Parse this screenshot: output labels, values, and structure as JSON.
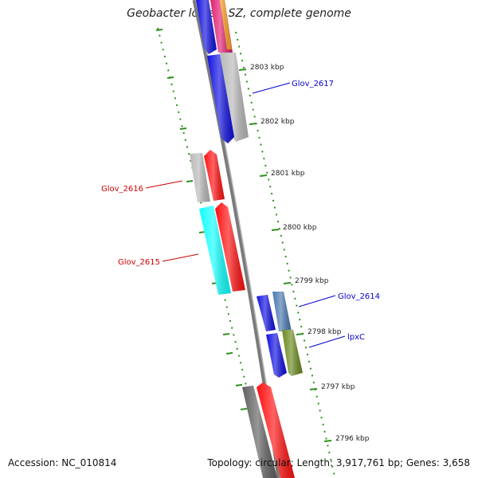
{
  "title": "Geobacter lovleyi SZ, complete genome",
  "footer": {
    "accession_label": "Accession:",
    "accession": "NC_010814",
    "topology_label": "Topology:",
    "topology": "circular",
    "length_label": "Length:",
    "length": "3,917,761 bp",
    "genes_label": "Genes:",
    "genes": "3,658"
  },
  "colors": {
    "backbone": "#7a7a7a",
    "tick": "#2f8f1f",
    "forward_label": "#0000cc",
    "reverse_label": "#cc0000"
  },
  "ticks": [
    {
      "label": "2803 kbp"
    },
    {
      "label": "2802 kbp"
    },
    {
      "label": "2801 kbp"
    },
    {
      "label": "2800 kbp"
    },
    {
      "label": "2799 kbp"
    },
    {
      "label": "2798 kbp"
    },
    {
      "label": "2797 kbp"
    },
    {
      "label": "2796 kbp"
    }
  ],
  "gene_labels": [
    {
      "text": "Glov_2617",
      "strand": "forward"
    },
    {
      "text": "Glov_2616",
      "strand": "reverse"
    },
    {
      "text": "Glov_2615",
      "strand": "reverse"
    },
    {
      "text": "Glov_2614",
      "strand": "forward"
    },
    {
      "text": "lpxC",
      "strand": "forward"
    }
  ]
}
